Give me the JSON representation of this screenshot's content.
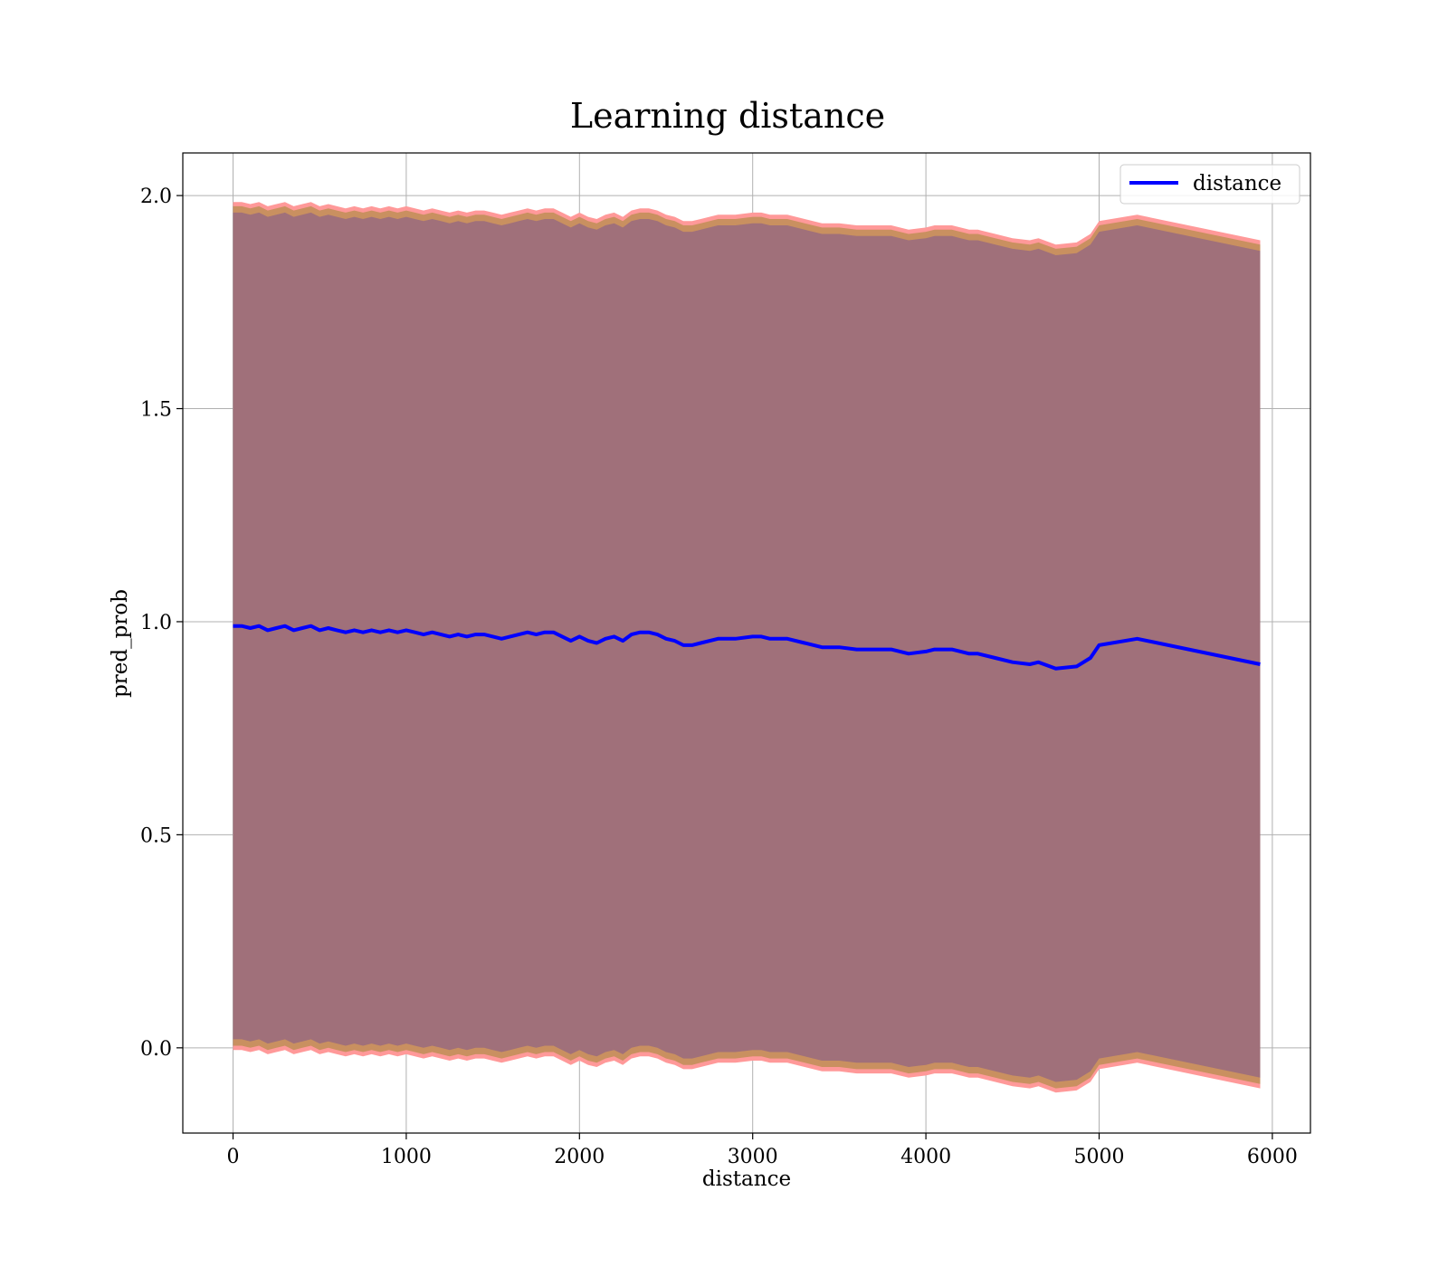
{
  "chart_data": {
    "type": "line",
    "title": "Learning distance",
    "xlabel": "distance",
    "ylabel": "pred_prob",
    "xlim": [
      -290,
      6220
    ],
    "ylim": [
      -0.2,
      2.1
    ],
    "xticks": [
      0,
      1000,
      2000,
      3000,
      4000,
      5000,
      6000
    ],
    "yticks": [
      0.0,
      0.5,
      1.0,
      1.5,
      2.0
    ],
    "xtick_labels": [
      "0",
      "1000",
      "2000",
      "3000",
      "4000",
      "5000",
      "6000"
    ],
    "ytick_labels": [
      "0.0",
      "0.5",
      "1.0",
      "1.5",
      "2.0"
    ],
    "grid": true,
    "legend": {
      "position": "top-right",
      "entries": [
        "distance"
      ]
    },
    "colors": {
      "line": "#0000ff",
      "outer_band": "#ff9999",
      "middle_band": "#c99060",
      "inner_band": "#a0707a"
    },
    "band_half_widths": {
      "inner": 0.97,
      "middle": 0.985,
      "outer": 0.995
    },
    "series": [
      {
        "name": "distance",
        "x": [
          0,
          50,
          100,
          150,
          200,
          250,
          300,
          350,
          400,
          450,
          500,
          550,
          600,
          650,
          700,
          750,
          800,
          850,
          900,
          950,
          1000,
          1050,
          1100,
          1150,
          1200,
          1250,
          1300,
          1350,
          1400,
          1450,
          1500,
          1550,
          1600,
          1650,
          1700,
          1750,
          1800,
          1850,
          1900,
          1950,
          2000,
          2050,
          2100,
          2150,
          2200,
          2250,
          2300,
          2350,
          2400,
          2450,
          2500,
          2550,
          2600,
          2650,
          2700,
          2800,
          2900,
          3000,
          3050,
          3100,
          3200,
          3300,
          3400,
          3500,
          3600,
          3700,
          3800,
          3900,
          4000,
          4050,
          4100,
          4150,
          4200,
          4250,
          4300,
          4400,
          4500,
          4600,
          4650,
          4750,
          4870,
          4950,
          5000,
          5220,
          5930
        ],
        "y": [
          0.99,
          0.99,
          0.985,
          0.99,
          0.98,
          0.985,
          0.99,
          0.98,
          0.985,
          0.99,
          0.98,
          0.985,
          0.98,
          0.975,
          0.98,
          0.975,
          0.98,
          0.975,
          0.98,
          0.975,
          0.98,
          0.975,
          0.97,
          0.975,
          0.97,
          0.965,
          0.97,
          0.965,
          0.97,
          0.97,
          0.965,
          0.96,
          0.965,
          0.97,
          0.975,
          0.97,
          0.975,
          0.975,
          0.965,
          0.955,
          0.965,
          0.955,
          0.95,
          0.96,
          0.965,
          0.955,
          0.97,
          0.975,
          0.975,
          0.97,
          0.96,
          0.955,
          0.945,
          0.945,
          0.95,
          0.96,
          0.96,
          0.965,
          0.965,
          0.96,
          0.96,
          0.95,
          0.94,
          0.94,
          0.935,
          0.935,
          0.935,
          0.925,
          0.93,
          0.935,
          0.935,
          0.935,
          0.93,
          0.925,
          0.925,
          0.915,
          0.905,
          0.9,
          0.905,
          0.89,
          0.895,
          0.915,
          0.945,
          0.96,
          0.9
        ]
      }
    ]
  }
}
